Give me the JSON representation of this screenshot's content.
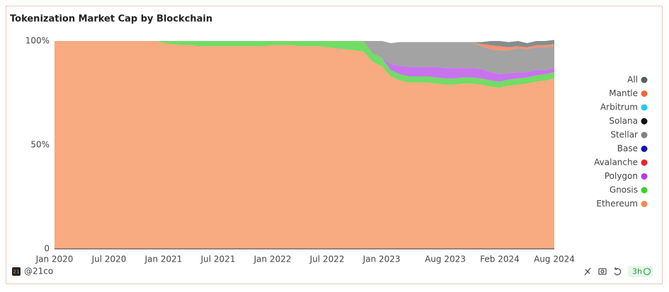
{
  "chart_data": {
    "type": "stacked_area",
    "title": "Tokenization Market Cap by Blockchain",
    "x": [
      "2020-01",
      "2020-02",
      "2020-03",
      "2020-04",
      "2020-05",
      "2020-06",
      "2020-07",
      "2020-08",
      "2020-09",
      "2020-10",
      "2020-11",
      "2020-12",
      "2021-01",
      "2021-02",
      "2021-03",
      "2021-04",
      "2021-05",
      "2021-06",
      "2021-07",
      "2021-08",
      "2021-09",
      "2021-10",
      "2021-11",
      "2021-12",
      "2022-01",
      "2022-02",
      "2022-03",
      "2022-04",
      "2022-05",
      "2022-06",
      "2022-07",
      "2022-08",
      "2022-09",
      "2022-10",
      "2022-11",
      "2022-12",
      "2023-01",
      "2023-02",
      "2023-03",
      "2023-04",
      "2023-05",
      "2023-06",
      "2023-07",
      "2023-08",
      "2023-09",
      "2023-10",
      "2023-11",
      "2023-12",
      "2024-01",
      "2024-02",
      "2024-03",
      "2024-04",
      "2024-05",
      "2024-06",
      "2024-07",
      "2024-08"
    ],
    "xticks": [
      {
        "value": "2020-01",
        "label": "Jan 2020"
      },
      {
        "value": "2020-07",
        "label": "Jul 2020"
      },
      {
        "value": "2021-01",
        "label": "Jan 2021"
      },
      {
        "value": "2021-07",
        "label": "Jul 2021"
      },
      {
        "value": "2022-01",
        "label": "Jan 2022"
      },
      {
        "value": "2022-07",
        "label": "Jul 2022"
      },
      {
        "value": "2023-01",
        "label": "Jan 2023"
      },
      {
        "value": "2023-08",
        "label": "Aug 2023"
      },
      {
        "value": "2024-02",
        "label": "Feb 2024"
      },
      {
        "value": "2024-08",
        "label": "Aug 2024"
      }
    ],
    "ylim": [
      0,
      100
    ],
    "yticks": [
      0,
      {
        "value": 50,
        "label": "50%"
      },
      {
        "value": 100,
        "label": "100%"
      }
    ],
    "series": [
      {
        "name": "All",
        "color": "#585f63",
        "values": [
          0,
          0,
          0,
          0,
          0,
          0,
          0,
          0,
          0,
          0,
          0,
          0,
          0,
          0,
          0,
          0,
          0,
          0,
          0,
          0,
          0,
          0,
          0,
          0,
          0,
          0,
          0,
          0,
          0,
          0,
          0,
          0,
          0,
          0,
          0,
          0,
          0,
          0,
          0,
          0,
          0,
          0,
          0,
          0,
          0,
          0,
          0,
          1,
          2,
          2.5,
          2.5,
          2.5,
          2,
          2,
          2,
          2
        ]
      },
      {
        "name": "Mantle",
        "color": "#f0683a",
        "values": [
          0,
          0,
          0,
          0,
          0,
          0,
          0,
          0,
          0,
          0,
          0,
          0,
          0,
          0,
          0,
          0,
          0,
          0,
          0,
          0,
          0,
          0,
          0,
          0,
          0,
          0,
          0,
          0,
          0,
          0,
          0,
          0,
          0,
          0,
          0,
          0,
          0,
          0,
          0,
          0,
          0,
          0,
          0,
          0,
          0,
          0,
          0,
          1,
          2,
          2,
          1.5,
          1,
          1,
          1,
          1,
          1
        ]
      },
      {
        "name": "Arbitrum",
        "color": "#22c9e8",
        "values": [
          0,
          0,
          0,
          0,
          0,
          0,
          0,
          0,
          0,
          0,
          0,
          0,
          0,
          0,
          0,
          0,
          0,
          0,
          0,
          0,
          0,
          0,
          0,
          0,
          0,
          0,
          0,
          0,
          0,
          0,
          0,
          0,
          0,
          0,
          0,
          0,
          0,
          0,
          0,
          0,
          0,
          0,
          0,
          0,
          0,
          0,
          0,
          0,
          0,
          0,
          0,
          0,
          0,
          0,
          0,
          0
        ]
      },
      {
        "name": "Solana",
        "color": "#111111",
        "values": [
          0,
          0,
          0,
          0,
          0,
          0,
          0,
          0,
          0,
          0,
          0,
          0,
          0,
          0,
          0,
          0,
          0,
          0,
          0,
          0,
          0,
          0,
          0,
          0,
          0,
          0,
          0,
          0,
          0,
          0,
          0,
          0,
          0,
          0,
          0,
          0,
          0,
          0,
          0,
          0,
          0,
          0,
          0,
          0,
          0,
          0,
          0,
          0,
          0,
          0,
          0,
          0,
          0,
          0,
          0,
          0
        ]
      },
      {
        "name": "Stellar",
        "color": "#808080",
        "values": [
          0,
          0,
          0,
          0,
          0,
          0,
          0,
          0,
          0,
          0,
          0,
          0,
          0,
          0,
          0,
          0,
          0,
          0,
          0,
          0,
          0,
          0,
          0,
          0,
          0,
          0,
          0,
          0,
          0,
          0,
          0,
          0,
          0,
          0,
          0,
          6,
          8,
          10,
          11.5,
          12,
          12,
          12,
          12,
          12.5,
          12.5,
          12.5,
          12.5,
          11,
          11,
          11.5,
          11,
          11.5,
          11,
          11,
          11,
          10.5
        ]
      },
      {
        "name": "Base",
        "color": "#0a19b5",
        "values": [
          0,
          0,
          0,
          0,
          0,
          0,
          0,
          0,
          0,
          0,
          0,
          0,
          0,
          0,
          0,
          0,
          0,
          0,
          0,
          0,
          0,
          0,
          0,
          0,
          0,
          0,
          0,
          0,
          0,
          0,
          0,
          0,
          0,
          0,
          0,
          0,
          0,
          0,
          0,
          0,
          0,
          0,
          0,
          0,
          0,
          0,
          0,
          0,
          0,
          0,
          0,
          0,
          0,
          0,
          0,
          0
        ]
      },
      {
        "name": "Avalanche",
        "color": "#e8252a",
        "values": [
          0,
          0,
          0,
          0,
          0,
          0,
          0,
          0,
          0,
          0,
          0,
          0,
          0,
          0,
          0,
          0,
          0,
          0,
          0,
          0,
          0,
          0,
          0,
          0,
          0,
          0,
          0,
          0,
          0,
          0,
          0,
          0,
          0,
          0,
          0,
          0,
          0,
          0,
          0,
          0,
          0,
          0,
          0,
          0,
          0,
          0,
          0,
          0,
          0,
          0,
          0,
          0,
          0,
          0,
          0,
          0
        ]
      },
      {
        "name": "Polygon",
        "color": "#b43ce8",
        "values": [
          0,
          0,
          0,
          0,
          0,
          0,
          0,
          0,
          0,
          0,
          0,
          0,
          0,
          0,
          0,
          0,
          0,
          0,
          0,
          0,
          0,
          0,
          0,
          0,
          0,
          0,
          0,
          0,
          0,
          0,
          0,
          0,
          0,
          0,
          0,
          0,
          0,
          3,
          4,
          4.5,
          4.5,
          4.5,
          5,
          5,
          5,
          4.5,
          4.5,
          4.5,
          4,
          3.5,
          3,
          3,
          2.5,
          2.5,
          2,
          2
        ]
      },
      {
        "name": "Gnosis",
        "color": "#3ccf2a",
        "values": [
          0,
          0,
          0,
          0,
          0,
          0,
          0,
          0,
          0,
          0,
          0,
          0,
          1,
          1.5,
          2,
          2,
          2.5,
          2.5,
          2.5,
          2.5,
          2.5,
          2.5,
          2.5,
          2.5,
          2,
          2,
          2,
          2.5,
          2.5,
          2.5,
          3,
          3.5,
          4,
          4.5,
          5,
          4,
          4,
          3,
          3,
          3,
          3,
          3,
          3,
          3,
          3,
          3,
          3,
          3,
          3,
          3,
          3,
          3,
          3,
          3,
          3,
          3
        ]
      },
      {
        "name": "Ethereum",
        "color": "#f5894f",
        "values": [
          100,
          100,
          100,
          100,
          100,
          100,
          100,
          100,
          100,
          100,
          100,
          100,
          99,
          98.5,
          98,
          98,
          97.5,
          97.5,
          97.5,
          97.5,
          97.5,
          97.5,
          97.5,
          97.5,
          98,
          98,
          98,
          97.5,
          97.5,
          97.5,
          97,
          96.5,
          96,
          95.5,
          95,
          90,
          88,
          83,
          81,
          80,
          80,
          80,
          79.5,
          79,
          79,
          79.5,
          79.5,
          79,
          78,
          77.5,
          78.5,
          79,
          79.5,
          80.5,
          81,
          82
        ]
      }
    ]
  },
  "footer": {
    "handle": "@21co",
    "logo": "21",
    "refresh": "3h"
  }
}
